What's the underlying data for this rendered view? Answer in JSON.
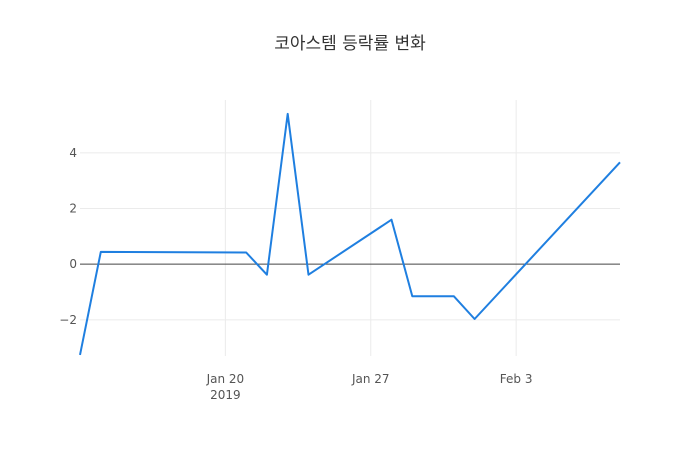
{
  "chart_data": {
    "type": "line",
    "title": "코아스템 등락률 변화",
    "xlabel": "",
    "ylabel": "",
    "x_axis": {
      "type": "date",
      "range": [
        "2019-01-13",
        "2019-02-08"
      ],
      "ticks": [
        {
          "date": "2019-01-20",
          "label": "Jan 20",
          "sublabel": "2019"
        },
        {
          "date": "2019-01-27",
          "label": "Jan 27",
          "sublabel": ""
        },
        {
          "date": "2019-02-03",
          "label": "Feb 3",
          "sublabel": ""
        }
      ]
    },
    "y_axis": {
      "range": [
        -3.3,
        5.9
      ],
      "ticks": [
        {
          "value": -2,
          "label": "−2"
        },
        {
          "value": 0,
          "label": "0"
        },
        {
          "value": 2,
          "label": "2"
        },
        {
          "value": 4,
          "label": "4"
        }
      ],
      "zero_line": true
    },
    "grid": true,
    "series": [
      {
        "color": "#1f7fe0",
        "x": [
          "2019-01-13",
          "2019-01-14",
          "2019-01-21",
          "2019-01-22",
          "2019-01-23",
          "2019-01-24",
          "2019-01-28",
          "2019-01-29",
          "2019-01-31",
          "2019-02-01",
          "2019-02-08"
        ],
        "y": [
          -3.26,
          0.44,
          0.42,
          -0.38,
          5.4,
          -0.38,
          1.6,
          -1.15,
          -1.15,
          -1.97,
          3.66
        ]
      }
    ]
  }
}
